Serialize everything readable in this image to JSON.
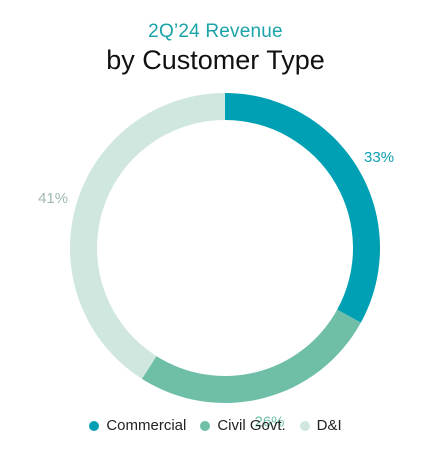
{
  "chart_data": {
    "type": "pie",
    "variant": "donut",
    "title": "2Q’24 Revenue",
    "subtitle": "by Customer Type",
    "legend": "bottom",
    "categories": [
      "Commercial",
      "Civil Govt.",
      "D&I"
    ],
    "values": [
      33,
      26,
      41
    ],
    "labels": [
      "33%",
      "26%",
      "41%"
    ],
    "colors": [
      "#00a0b4",
      "#6fbfa8",
      "#cfe7df"
    ],
    "title_color": "#1aa3a8"
  }
}
